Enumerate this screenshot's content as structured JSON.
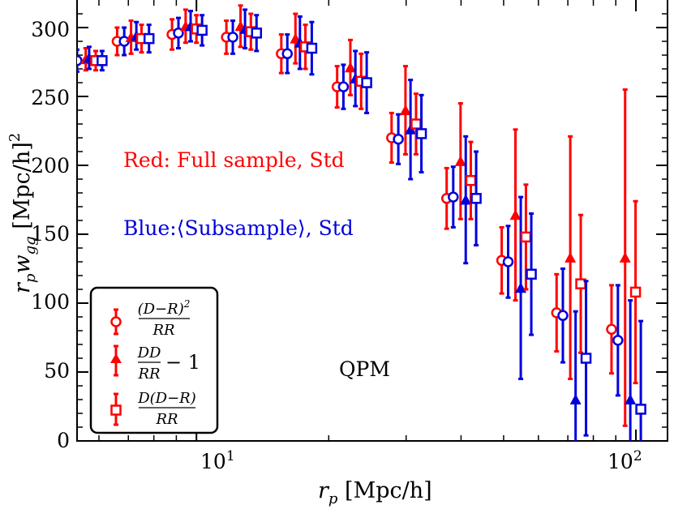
{
  "chart_data": {
    "type": "scatter",
    "xscale": "log",
    "xlim": [
      5.35,
      118
    ],
    "ylim": [
      0,
      320
    ],
    "xlabel": {
      "main": "r",
      "sub": "p",
      "rest": " [Mpc/h]"
    },
    "ylabel": {
      "main": "r",
      "sub1": "p",
      "w": "w",
      "sub2": "gg",
      "rest": " [Mpc/h]",
      "sup": "2"
    },
    "x_ticks_major": [
      {
        "value": 10,
        "base": "10",
        "exp": "1"
      },
      {
        "value": 100,
        "base": "10",
        "exp": "2"
      }
    ],
    "y_ticks": [
      {
        "value": 0,
        "label": "0"
      },
      {
        "value": 50,
        "label": "50"
      },
      {
        "value": 100,
        "label": "100"
      },
      {
        "value": 150,
        "label": "150"
      },
      {
        "value": 200,
        "label": "200"
      },
      {
        "value": 250,
        "label": "250"
      },
      {
        "value": 300,
        "label": "300"
      }
    ],
    "annotations": {
      "red": "Red: Full sample, Std",
      "blue_prefix": "Blue:",
      "blue_left": "⟨",
      "blue_inner": "Subsample",
      "blue_right": "⟩",
      "blue_suffix": ", Std",
      "label": "QPM"
    },
    "colors": {
      "red": "#ff0000",
      "blue": "#0000dd"
    },
    "legend": {
      "position": "bottom-left",
      "entries": [
        {
          "marker": "circle",
          "num": "(D−R)",
          "num_sup": "2",
          "den": "RR",
          "suffix": ""
        },
        {
          "marker": "triangle",
          "num": "DD",
          "num_sup": "",
          "den": "RR",
          "suffix": "− 1"
        },
        {
          "marker": "square",
          "num": "D(D−R)",
          "num_sup": "",
          "den": "RR",
          "suffix": ""
        }
      ]
    },
    "series": [
      {
        "name": "(D-R)^2/RR, Full sample",
        "marker": "circle",
        "color": "red",
        "x": [
          5.2,
          6.6,
          8.8,
          11.7,
          15.6,
          20.9,
          27.8,
          37.1,
          49.5,
          66.0,
          88.0
        ],
        "y": [
          275,
          290,
          295,
          293,
          281,
          257,
          220,
          176,
          131,
          93,
          81
        ],
        "yerr": [
          8,
          10,
          11,
          12,
          14,
          15,
          18,
          22,
          24,
          28,
          32
        ]
      },
      {
        "name": "(D-R)^2/RR, Subsample",
        "marker": "circle",
        "color": "blue",
        "x": [
          5.35,
          6.85,
          9.1,
          12.1,
          16.1,
          21.6,
          28.8,
          38.4,
          51.2,
          68.2,
          91.0
        ],
        "y": [
          276,
          290,
          296,
          293,
          281,
          257,
          219,
          177,
          130,
          91,
          73
        ],
        "yerr": [
          8,
          10,
          11,
          12,
          14,
          16,
          18,
          22,
          26,
          34,
          40
        ]
      },
      {
        "name": "DD/RR-1, Full sample",
        "marker": "triangle",
        "color": "red",
        "x": [
          5.6,
          7.1,
          9.45,
          12.6,
          16.8,
          22.4,
          29.9,
          39.9,
          53.2,
          70.9,
          94.5
        ],
        "y": [
          277,
          293,
          301,
          301,
          292,
          271,
          240,
          203,
          164,
          133,
          133
        ],
        "yerr": [
          8,
          12,
          12,
          15,
          18,
          20,
          32,
          42,
          62,
          88,
          122
        ]
      },
      {
        "name": "DD/RR-1, Subsample",
        "marker": "triangle",
        "color": "blue",
        "x": [
          5.7,
          7.3,
          9.7,
          12.9,
          17.2,
          23.0,
          30.7,
          41.0,
          54.7,
          72.9,
          97.1
        ],
        "y": [
          278,
          294,
          301,
          299,
          289,
          263,
          226,
          175,
          111,
          30,
          30
        ],
        "yerr": [
          8,
          10,
          11,
          14,
          19,
          20,
          36,
          46,
          66,
          64,
          72
        ]
      },
      {
        "name": "D(D-R)/RR, Full sample",
        "marker": "square",
        "color": "red",
        "x": [
          5.9,
          7.5,
          10.0,
          13.3,
          17.7,
          23.7,
          31.6,
          42.1,
          56.2,
          74.9,
          99.8
        ],
        "y": [
          276,
          292,
          299,
          297,
          286,
          261,
          230,
          189,
          148,
          114,
          108
        ],
        "yerr": [
          7,
          10,
          10,
          13,
          16,
          20,
          22,
          28,
          38,
          50,
          66
        ]
      },
      {
        "name": "D(D-R)/RR, Subsample",
        "marker": "square",
        "color": "blue",
        "x": [
          6.1,
          7.8,
          10.3,
          13.7,
          18.3,
          24.4,
          32.5,
          43.3,
          57.8,
          77.0,
          102.6
        ],
        "y": [
          276,
          292,
          298,
          296,
          285,
          260,
          223,
          176,
          121,
          60,
          23
        ],
        "yerr": [
          7,
          10,
          11,
          13,
          19,
          22,
          28,
          34,
          44,
          56,
          64
        ]
      }
    ]
  }
}
